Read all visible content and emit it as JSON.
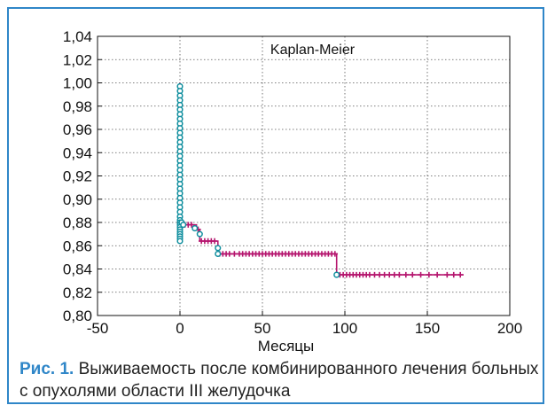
{
  "caption": {
    "label": "Рис. 1.",
    "text": " Выживаемость после комбинированного лечения больных с опухолями области III желудочка"
  },
  "colors": {
    "frame": "#2f86c8",
    "censored": "#0f8e9e",
    "complete": "#b5156e"
  },
  "chart_data": {
    "type": "line",
    "title": "Kaplan-Meier",
    "xlabel": "Месяцы",
    "ylabel": "",
    "xlim": [
      -50,
      200
    ],
    "ylim": [
      0.8,
      1.04
    ],
    "grid": true,
    "x_ticks": [
      -50,
      0,
      50,
      100,
      150,
      200
    ],
    "x_tick_labels": [
      "-50",
      "0",
      "50",
      "100",
      "150",
      "200"
    ],
    "y_ticks": [
      0.8,
      0.82,
      0.84,
      0.86,
      0.88,
      0.9,
      0.92,
      0.94,
      0.96,
      0.98,
      1.0,
      1.02,
      1.04
    ],
    "y_tick_labels": [
      "0,80",
      "0,82",
      "0,84",
      "0,86",
      "0,88",
      "0,90",
      "0,92",
      "0,94",
      "0,96",
      "0,98",
      "1,00",
      "1,02",
      "1,04"
    ],
    "step_line": {
      "x": [
        0,
        0,
        1,
        1,
        10,
        10,
        12,
        12,
        23,
        23,
        95,
        95,
        172
      ],
      "y": [
        1.0,
        0.88,
        0.88,
        0.878,
        0.878,
        0.874,
        0.874,
        0.864,
        0.864,
        0.853,
        0.853,
        0.835,
        0.835
      ]
    },
    "complete_markers": {
      "x": [
        3,
        5,
        7,
        11,
        13,
        15,
        17,
        19,
        21,
        24,
        26,
        28,
        30,
        33,
        36,
        38,
        40,
        42,
        44,
        46,
        48,
        50,
        52,
        54,
        56,
        58,
        60,
        62,
        64,
        66,
        68,
        70,
        72,
        74,
        76,
        78,
        80,
        82,
        84,
        86,
        88,
        90,
        92,
        94,
        97,
        99,
        101,
        103,
        105,
        107,
        109,
        111,
        113,
        115,
        118,
        121,
        124,
        127,
        130,
        133,
        137,
        141,
        146,
        151,
        156,
        162,
        166,
        170
      ],
      "y": [
        0.878,
        0.878,
        0.878,
        0.874,
        0.864,
        0.864,
        0.864,
        0.864,
        0.864,
        0.853,
        0.853,
        0.853,
        0.853,
        0.853,
        0.853,
        0.853,
        0.853,
        0.853,
        0.853,
        0.853,
        0.853,
        0.853,
        0.853,
        0.853,
        0.853,
        0.853,
        0.853,
        0.853,
        0.853,
        0.853,
        0.853,
        0.853,
        0.853,
        0.853,
        0.853,
        0.853,
        0.853,
        0.853,
        0.853,
        0.853,
        0.853,
        0.853,
        0.853,
        0.853,
        0.835,
        0.835,
        0.835,
        0.835,
        0.835,
        0.835,
        0.835,
        0.835,
        0.835,
        0.835,
        0.835,
        0.835,
        0.835,
        0.835,
        0.835,
        0.835,
        0.835,
        0.835,
        0.835,
        0.835,
        0.835,
        0.835,
        0.835,
        0.835
      ]
    },
    "censored_markers": {
      "x": [
        0,
        0,
        0,
        0,
        0,
        0,
        0,
        0,
        0,
        0,
        0,
        0,
        0,
        0,
        0,
        0,
        0,
        0,
        0,
        0,
        0,
        0,
        0,
        0,
        0,
        0,
        0,
        0,
        0,
        0,
        0,
        0,
        0,
        0,
        0,
        0,
        0,
        0,
        0,
        1,
        2,
        9,
        12,
        23,
        23,
        95
      ],
      "y": [
        0.997,
        0.993,
        0.989,
        0.985,
        0.981,
        0.977,
        0.973,
        0.969,
        0.965,
        0.961,
        0.957,
        0.953,
        0.949,
        0.945,
        0.941,
        0.937,
        0.933,
        0.929,
        0.925,
        0.921,
        0.917,
        0.913,
        0.909,
        0.905,
        0.901,
        0.897,
        0.893,
        0.889,
        0.885,
        0.882,
        0.88,
        0.878,
        0.876,
        0.874,
        0.872,
        0.87,
        0.868,
        0.866,
        0.864,
        0.88,
        0.878,
        0.875,
        0.87,
        0.858,
        0.853,
        0.835
      ]
    }
  }
}
